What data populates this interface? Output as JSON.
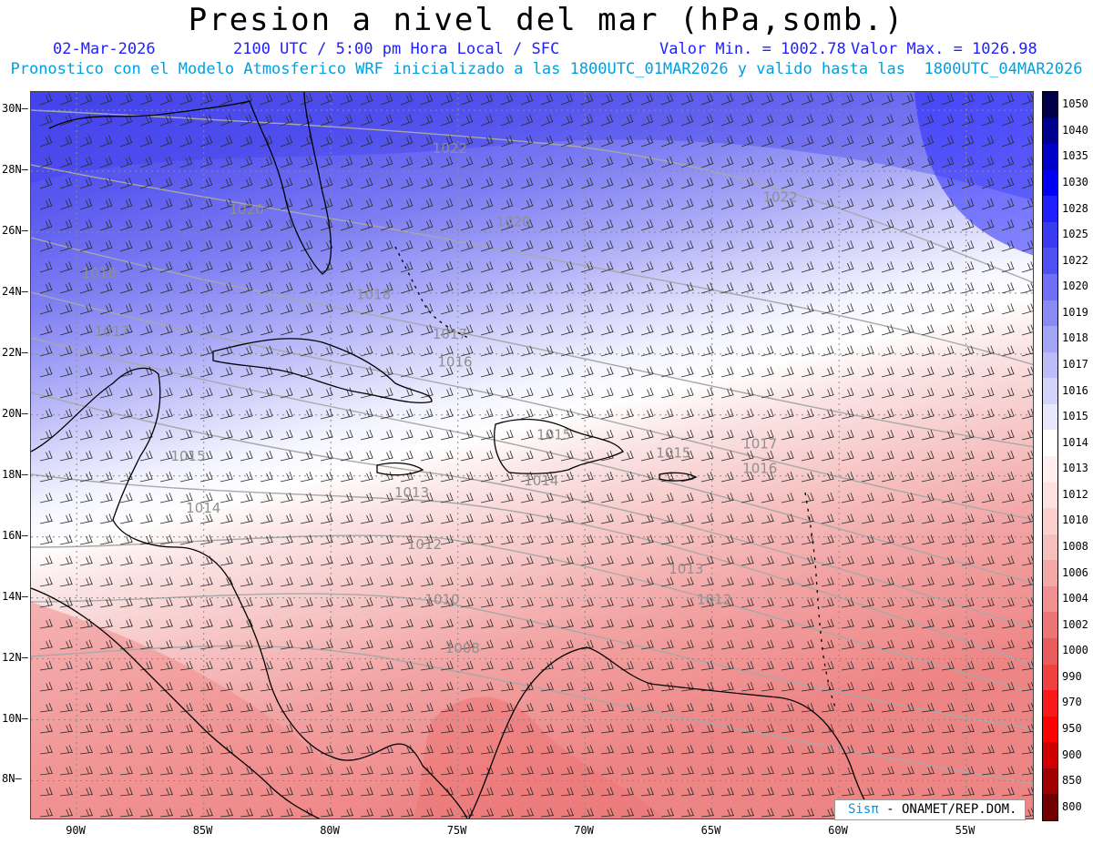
{
  "header": {
    "title": "Presion a nivel del mar (hPa,somb.)",
    "date": "02-Mar-2026",
    "time": "2100 UTC / 5:00 pm Hora Local / SFC",
    "min_value": "Valor Min. = 1002.78",
    "max_value": "Valor Max. = 1026.98",
    "model_info": "Pronostico con el Modelo Atmosferico WRF inicializado a las 1800UTC_01MAR2026 y valido hasta las  1800UTC_04MAR2026"
  },
  "map": {
    "lat_labels": [
      "30N",
      "28N",
      "26N",
      "24N",
      "22N",
      "20N",
      "18N",
      "16N",
      "14N",
      "12N",
      "10N",
      "8N"
    ],
    "lon_labels": [
      "90W",
      "85W",
      "80W",
      "75W",
      "70W",
      "65W",
      "60W",
      "55W"
    ],
    "isobar_labels": [
      {
        "text": "1022",
        "lon": -76.0,
        "lat": 28.6
      },
      {
        "text": "1022",
        "lon": -63.0,
        "lat": 27.0
      },
      {
        "text": "1020",
        "lon": -84.0,
        "lat": 26.6
      },
      {
        "text": "1020",
        "lon": -73.5,
        "lat": 26.2
      },
      {
        "text": "1018",
        "lon": -89.8,
        "lat": 24.5
      },
      {
        "text": "1018",
        "lon": -79.0,
        "lat": 23.8
      },
      {
        "text": "1017",
        "lon": -89.3,
        "lat": 22.6
      },
      {
        "text": "1017",
        "lon": -76.0,
        "lat": 22.5
      },
      {
        "text": "1017",
        "lon": -63.8,
        "lat": 18.9
      },
      {
        "text": "1016",
        "lon": -75.8,
        "lat": 21.6
      },
      {
        "text": "1016",
        "lon": -63.8,
        "lat": 18.1
      },
      {
        "text": "1015",
        "lon": -86.3,
        "lat": 18.5
      },
      {
        "text": "1015",
        "lon": -67.2,
        "lat": 18.6
      },
      {
        "text": "1015",
        "lon": -71.9,
        "lat": 19.2
      },
      {
        "text": "1014",
        "lon": -85.7,
        "lat": 16.8
      },
      {
        "text": "1014",
        "lon": -72.4,
        "lat": 17.7
      },
      {
        "text": "1013",
        "lon": -77.5,
        "lat": 17.3
      },
      {
        "text": "1013",
        "lon": -66.7,
        "lat": 14.8
      },
      {
        "text": "1012",
        "lon": -77.0,
        "lat": 15.6
      },
      {
        "text": "1012",
        "lon": -65.6,
        "lat": 13.8
      },
      {
        "text": "1010",
        "lon": -76.3,
        "lat": 13.8
      },
      {
        "text": "1008",
        "lon": -75.5,
        "lat": 12.2
      }
    ]
  },
  "colorbar": {
    "labels": [
      "1050",
      "1040",
      "1035",
      "1030",
      "1028",
      "1025",
      "1022",
      "1020",
      "1019",
      "1018",
      "1017",
      "1016",
      "1015",
      "1014",
      "1013",
      "1012",
      "1010",
      "1008",
      "1006",
      "1004",
      "1002",
      "1000",
      "990",
      "970",
      "950",
      "900",
      "850",
      "800"
    ],
    "colors": [
      "#00004a",
      "#000090",
      "#0000c8",
      "#0000f4",
      "#2020ff",
      "#3a3af0",
      "#5050f2",
      "#7070f4",
      "#8a8af5",
      "#a4a4f8",
      "#bcbcf9",
      "#d4d4fb",
      "#e8e8fd",
      "#ffffff",
      "#fff0f0",
      "#fde0e0",
      "#fad0d0",
      "#f7bebe",
      "#f4a8a8",
      "#f09090",
      "#ec7676",
      "#e85c5c",
      "#f04040",
      "#f81a1a",
      "#ff0000",
      "#d00000",
      "#a00000",
      "#700000"
    ]
  },
  "credit": {
    "logo": "Sisπ",
    "text": " - ONAMET/REP.DOM."
  }
}
